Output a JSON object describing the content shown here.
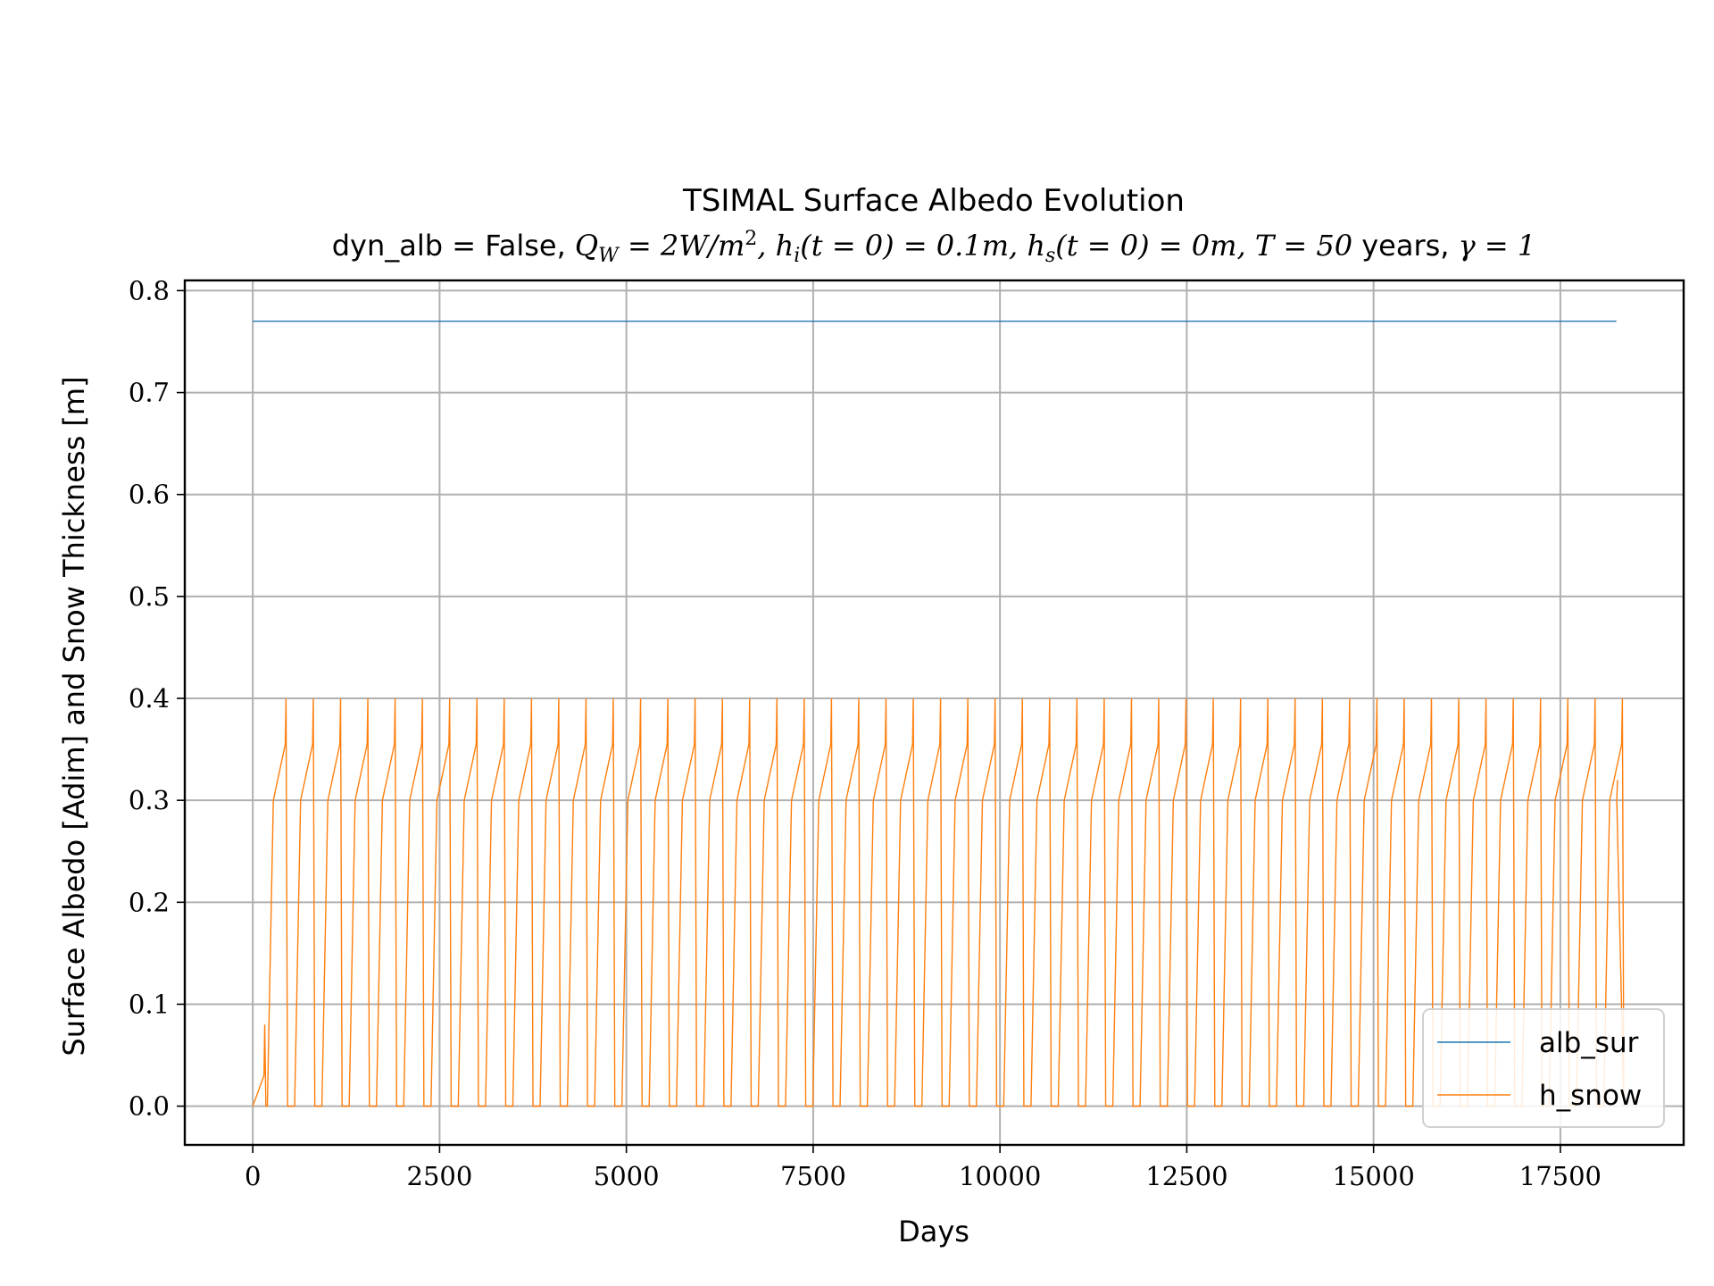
{
  "chart_data": {
    "type": "line",
    "title": "TSIMAL Surface Albedo Evolution",
    "subtitle": {
      "prefix": "dyn_alb = False, ",
      "qw": "Q",
      "qw_sub": "W",
      "qw_val": " = 2W/m",
      "qw_sup": "2",
      "hi_part": ", h",
      "hi_sub": "i",
      "hi_val": "(t = 0) = 0.1m, h",
      "hs_sub": "s",
      "hs_val": "(t = 0) = 0m, T = 50",
      "years": " years, ",
      "gamma": "γ = 1"
    },
    "xlabel": "Days",
    "ylabel": "Surface Albedo [Adim] and Snow Thickness [m]",
    "xlim": [
      -910,
      19150
    ],
    "ylim": [
      -0.038,
      0.81
    ],
    "x_ticks": [
      0,
      2500,
      5000,
      7500,
      10000,
      12500,
      15000,
      17500
    ],
    "x_tick_labels": [
      "0",
      "2500",
      "5000",
      "7500",
      "10000",
      "12500",
      "15000",
      "17500"
    ],
    "y_ticks": [
      0.0,
      0.1,
      0.2,
      0.3,
      0.4,
      0.5,
      0.6,
      0.7,
      0.8
    ],
    "y_tick_labels": [
      "0.0",
      "0.1",
      "0.2",
      "0.3",
      "0.4",
      "0.5",
      "0.6",
      "0.7",
      "0.8"
    ],
    "grid": true,
    "legend": {
      "position": "bottom-right"
    },
    "series": [
      {
        "name": "alb_sur",
        "color": "#1f77b4",
        "points": [
          [
            0,
            0.77
          ],
          [
            18250,
            0.77
          ]
        ]
      },
      {
        "name": "h_snow",
        "color": "#ff7f0e",
        "first_year_points": [
          [
            0,
            0.0
          ],
          [
            150,
            0.03
          ],
          [
            160,
            0.08
          ],
          [
            175,
            0.0
          ]
        ],
        "cycle_start_day": 195,
        "cycle_period_days": 365,
        "cycle_count": 50,
        "cycle_points_relative": [
          [
            0,
            0.0
          ],
          [
            80,
            0.3
          ],
          [
            240,
            0.355
          ],
          [
            250,
            0.4
          ],
          [
            270,
            0.0
          ]
        ],
        "last_points": [
          [
            18255,
            0.3
          ],
          [
            18265,
            0.32
          ]
        ]
      }
    ]
  }
}
